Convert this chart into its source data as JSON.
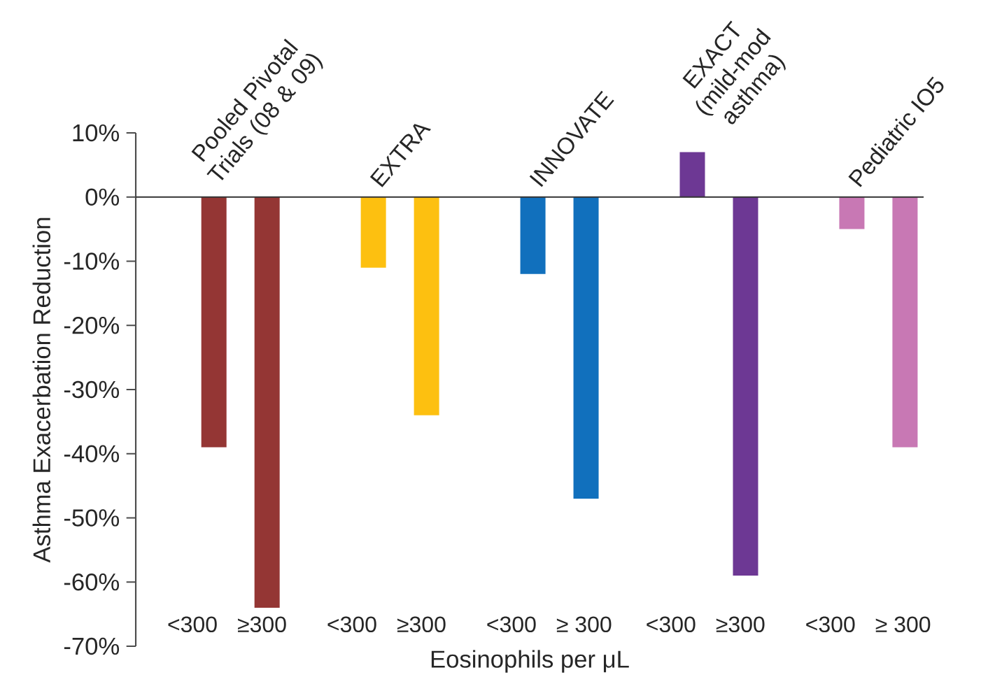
{
  "chart_data": {
    "type": "bar",
    "xlabel": "Eosinophils per μL",
    "ylabel": "Asthma Exacerbation Reduction",
    "categories": [
      "<300",
      "≥300",
      "<300",
      "≥300",
      "<300",
      "≥ 300",
      "<300",
      "≥300",
      "<300",
      "≥ 300"
    ],
    "values": [
      -39,
      -64,
      -11,
      -34,
      -12,
      -47,
      7,
      -59,
      -5,
      -39
    ],
    "colors": [
      "#943634",
      "#943634",
      "#fdc010",
      "#fdc010",
      "#1170bd",
      "#1170bd",
      "#6d3894",
      "#6d3894",
      "#c878b4",
      "#c878b4"
    ],
    "ylim": [
      -70,
      10
    ],
    "yticks": [
      {
        "value": 10,
        "label": "10%"
      },
      {
        "value": 0,
        "label": "0%"
      },
      {
        "value": -10,
        "label": "-10%"
      },
      {
        "value": -20,
        "label": "-20%"
      },
      {
        "value": -30,
        "label": "-30%"
      },
      {
        "value": -40,
        "label": "-40%"
      },
      {
        "value": -50,
        "label": "-50%"
      },
      {
        "value": -60,
        "label": "-60%"
      },
      {
        "value": -70,
        "label": "-70%"
      }
    ],
    "annotations": [
      "Pooled Pivotal Trials (08 & 09)",
      "EXTRA",
      "INNOVATE",
      "EXACT (mild-mod asthma)",
      "Pediatric IO5"
    ]
  }
}
